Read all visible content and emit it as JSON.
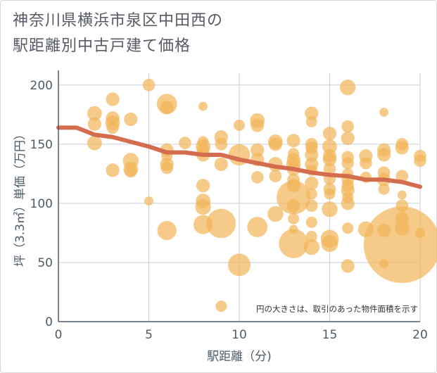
{
  "title_line1": "神奈川県横浜市泉区中田西の",
  "title_line2": "駅距離別中古戸建て価格",
  "chart_data": {
    "type": "scatter",
    "xlabel": "駅距離（分)",
    "ylabel": "坪（3.3㎡）単価（万円）",
    "xlim": [
      0,
      20
    ],
    "ylim": [
      0,
      210
    ],
    "xticks": [
      0,
      5,
      10,
      15,
      20
    ],
    "yticks": [
      0,
      50,
      100,
      150,
      200
    ],
    "grid": true,
    "annotation": "円の大きさは、取引のあった物件面積を示す",
    "colors": {
      "bubble": "#f2b55a",
      "trend": "#d46c4e",
      "grid": "#c8d2dc",
      "axis": "#4e5b68"
    },
    "bubbles": [
      {
        "x": 2,
        "y": 176,
        "s": 1.3
      },
      {
        "x": 2,
        "y": 167,
        "s": 1.2
      },
      {
        "x": 2,
        "y": 151,
        "s": 1.3
      },
      {
        "x": 3,
        "y": 188,
        "s": 1.2
      },
      {
        "x": 3,
        "y": 172,
        "s": 1.2
      },
      {
        "x": 3,
        "y": 168,
        "s": 1.3
      },
      {
        "x": 3,
        "y": 164,
        "s": 1.1
      },
      {
        "x": 3,
        "y": 128,
        "s": 1.2
      },
      {
        "x": 4,
        "y": 171,
        "s": 1.2
      },
      {
        "x": 4,
        "y": 136,
        "s": 1.4
      },
      {
        "x": 4,
        "y": 129,
        "s": 1.3
      },
      {
        "x": 4,
        "y": 127,
        "s": 1.1
      },
      {
        "x": 5,
        "y": 200,
        "s": 1.1
      },
      {
        "x": 5,
        "y": 102,
        "s": 0.8
      },
      {
        "x": 6,
        "y": 184,
        "s": 1.8
      },
      {
        "x": 6,
        "y": 181,
        "s": 1.2
      },
      {
        "x": 6,
        "y": 145,
        "s": 1.2
      },
      {
        "x": 6,
        "y": 140,
        "s": 1.0
      },
      {
        "x": 6,
        "y": 133,
        "s": 1.2
      },
      {
        "x": 6,
        "y": 130,
        "s": 1.1
      },
      {
        "x": 6,
        "y": 77,
        "s": 1.7
      },
      {
        "x": 7,
        "y": 151,
        "s": 1.1
      },
      {
        "x": 8,
        "y": 182,
        "s": 0.8
      },
      {
        "x": 8,
        "y": 152,
        "s": 1.0
      },
      {
        "x": 8,
        "y": 148,
        "s": 1.3
      },
      {
        "x": 8,
        "y": 145,
        "s": 1.1
      },
      {
        "x": 8,
        "y": 141,
        "s": 1.2
      },
      {
        "x": 8,
        "y": 115,
        "s": 1.2
      },
      {
        "x": 8,
        "y": 102,
        "s": 1.3
      },
      {
        "x": 8,
        "y": 97,
        "s": 1.4
      },
      {
        "x": 8,
        "y": 82,
        "s": 1.7
      },
      {
        "x": 9,
        "y": 156,
        "s": 1.2
      },
      {
        "x": 9,
        "y": 150,
        "s": 1.1
      },
      {
        "x": 9,
        "y": 133,
        "s": 1.2
      },
      {
        "x": 9,
        "y": 83,
        "s": 2.6
      },
      {
        "x": 9,
        "y": 13,
        "s": 1.0
      },
      {
        "x": 10,
        "y": 166,
        "s": 1.0
      },
      {
        "x": 10,
        "y": 141,
        "s": 1.9
      },
      {
        "x": 10,
        "y": 48,
        "s": 2.0
      },
      {
        "x": 11,
        "y": 170,
        "s": 1.3
      },
      {
        "x": 11,
        "y": 166,
        "s": 1.2
      },
      {
        "x": 11,
        "y": 145,
        "s": 1.2
      },
      {
        "x": 11,
        "y": 137,
        "s": 1.2
      },
      {
        "x": 11,
        "y": 122,
        "s": 1.1
      },
      {
        "x": 11,
        "y": 80,
        "s": 1.8
      },
      {
        "x": 12,
        "y": 152,
        "s": 1.3
      },
      {
        "x": 12,
        "y": 150,
        "s": 1.2
      },
      {
        "x": 12,
        "y": 133,
        "s": 1.3
      },
      {
        "x": 12,
        "y": 123,
        "s": 1.1
      },
      {
        "x": 12,
        "y": 91,
        "s": 1.4
      },
      {
        "x": 13,
        "y": 153,
        "s": 1.2
      },
      {
        "x": 13,
        "y": 142,
        "s": 1.0
      },
      {
        "x": 13,
        "y": 137,
        "s": 1.2
      },
      {
        "x": 13,
        "y": 133,
        "s": 1.3
      },
      {
        "x": 13,
        "y": 129,
        "s": 1.2
      },
      {
        "x": 13,
        "y": 120,
        "s": 1.1
      },
      {
        "x": 13,
        "y": 115,
        "s": 1.2
      },
      {
        "x": 13,
        "y": 105,
        "s": 3.0
      },
      {
        "x": 13,
        "y": 98,
        "s": 1.2
      },
      {
        "x": 13,
        "y": 87,
        "s": 1.0
      },
      {
        "x": 13,
        "y": 78,
        "s": 0.8
      },
      {
        "x": 13,
        "y": 66,
        "s": 2.6
      },
      {
        "x": 14,
        "y": 176,
        "s": 1.2
      },
      {
        "x": 14,
        "y": 169,
        "s": 1.0
      },
      {
        "x": 14,
        "y": 150,
        "s": 1.1
      },
      {
        "x": 14,
        "y": 147,
        "s": 1.1
      },
      {
        "x": 14,
        "y": 141,
        "s": 1.2
      },
      {
        "x": 14,
        "y": 133,
        "s": 1.2
      },
      {
        "x": 14,
        "y": 128,
        "s": 1.0
      },
      {
        "x": 14,
        "y": 117,
        "s": 1.2
      },
      {
        "x": 14,
        "y": 108,
        "s": 1.0
      },
      {
        "x": 14,
        "y": 98,
        "s": 1.1
      },
      {
        "x": 14,
        "y": 84,
        "s": 1.0
      },
      {
        "x": 14,
        "y": 72,
        "s": 1.0
      },
      {
        "x": 14,
        "y": 63,
        "s": 1.4
      },
      {
        "x": 15,
        "y": 159,
        "s": 1.2
      },
      {
        "x": 15,
        "y": 148,
        "s": 1.3
      },
      {
        "x": 15,
        "y": 140,
        "s": 1.2
      },
      {
        "x": 15,
        "y": 137,
        "s": 1.2
      },
      {
        "x": 15,
        "y": 129,
        "s": 1.1
      },
      {
        "x": 15,
        "y": 121,
        "s": 1.1
      },
      {
        "x": 15,
        "y": 112,
        "s": 1.1
      },
      {
        "x": 15,
        "y": 108,
        "s": 1.0
      },
      {
        "x": 15,
        "y": 95,
        "s": 1.4
      },
      {
        "x": 15,
        "y": 70,
        "s": 1.6
      },
      {
        "x": 15,
        "y": 66,
        "s": 1.5
      },
      {
        "x": 16,
        "y": 198,
        "s": 1.4
      },
      {
        "x": 16,
        "y": 165,
        "s": 1.1
      },
      {
        "x": 16,
        "y": 155,
        "s": 1.2
      },
      {
        "x": 16,
        "y": 139,
        "s": 1.1
      },
      {
        "x": 16,
        "y": 134,
        "s": 1.1
      },
      {
        "x": 16,
        "y": 125,
        "s": 1.0
      },
      {
        "x": 16,
        "y": 120,
        "s": 1.1
      },
      {
        "x": 16,
        "y": 115,
        "s": 1.1
      },
      {
        "x": 16,
        "y": 111,
        "s": 1.2
      },
      {
        "x": 16,
        "y": 105,
        "s": 1.0
      },
      {
        "x": 16,
        "y": 100,
        "s": 1.2
      },
      {
        "x": 16,
        "y": 79,
        "s": 1.0
      },
      {
        "x": 16,
        "y": 47,
        "s": 1.2
      },
      {
        "x": 17,
        "y": 140,
        "s": 1.2
      },
      {
        "x": 17,
        "y": 134,
        "s": 1.1
      },
      {
        "x": 17,
        "y": 122,
        "s": 1.0
      },
      {
        "x": 17,
        "y": 78,
        "s": 1.4
      },
      {
        "x": 18,
        "y": 177,
        "s": 0.8
      },
      {
        "x": 18,
        "y": 145,
        "s": 1.2
      },
      {
        "x": 18,
        "y": 141,
        "s": 1.2
      },
      {
        "x": 18,
        "y": 126,
        "s": 1.1
      },
      {
        "x": 18,
        "y": 120,
        "s": 1.2
      },
      {
        "x": 18,
        "y": 112,
        "s": 1.0
      },
      {
        "x": 18,
        "y": 77,
        "s": 1.2
      },
      {
        "x": 18,
        "y": 49,
        "s": 0.8
      },
      {
        "x": 19,
        "y": 150,
        "s": 1.1
      },
      {
        "x": 19,
        "y": 147,
        "s": 1.2
      },
      {
        "x": 19,
        "y": 123,
        "s": 1.1
      },
      {
        "x": 19,
        "y": 107,
        "s": 0.8
      },
      {
        "x": 19,
        "y": 98,
        "s": 1.1
      },
      {
        "x": 19,
        "y": 87,
        "s": 1.2
      },
      {
        "x": 19,
        "y": 79,
        "s": 1.3
      },
      {
        "x": 19,
        "y": 65,
        "s": 6.8
      },
      {
        "x": 20,
        "y": 140,
        "s": 1.1
      },
      {
        "x": 20,
        "y": 136,
        "s": 1.1
      },
      {
        "x": 20,
        "y": 75,
        "s": 0.9
      }
    ],
    "trend": {
      "name": "trend",
      "x": [
        0,
        1,
        2,
        3,
        4,
        5,
        6,
        7,
        8,
        9,
        10,
        11,
        12,
        13,
        14,
        15,
        16,
        17,
        18,
        19,
        20
      ],
      "y": [
        164,
        164,
        158,
        156,
        152,
        148,
        143,
        143,
        141,
        141,
        137,
        134,
        131,
        129,
        126,
        124,
        123,
        120,
        120,
        118,
        114
      ]
    }
  }
}
